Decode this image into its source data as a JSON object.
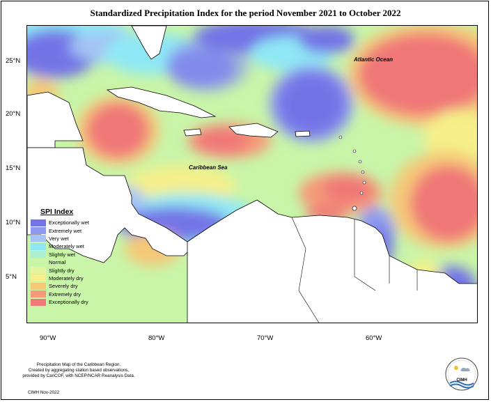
{
  "title": "Standardized Precipitation Index for the period November 2021 to October 2022",
  "latitude_labels": [
    "25°N",
    "20°N",
    "15°N",
    "10°N",
    "5°N"
  ],
  "longitude_labels": [
    "90°W",
    "80°W",
    "70°W",
    "60°W"
  ],
  "ocean_labels": {
    "atlantic": "Atlantic Ocean",
    "caribbean": "Caribbean Sea"
  },
  "legend": {
    "title": "SPI Index",
    "items": [
      {
        "label": "Exceptionally wet",
        "color": "#7373e6"
      },
      {
        "label": "Extremely wet",
        "color": "#8e9af0"
      },
      {
        "label": "Very wet",
        "color": "#a4c4f5"
      },
      {
        "label": "Moderately wet",
        "color": "#8fe8f5"
      },
      {
        "label": "Slightly wet",
        "color": "#b0f0d2"
      },
      {
        "label": "Normal",
        "color": "#c8f5a8"
      },
      {
        "label": "Slightly dry",
        "color": "#e4f5a0"
      },
      {
        "label": "Moderately dry",
        "color": "#f5f08a"
      },
      {
        "label": "Severely dry",
        "color": "#f5c878"
      },
      {
        "label": "Extremely dry",
        "color": "#f59a78"
      },
      {
        "label": "Exceptionally dry",
        "color": "#f07878"
      }
    ]
  },
  "footer": {
    "line1": "Precipitation Map of the Caribbean Region.",
    "line2": "Created by aggregating station based observations,",
    "line3": "provided by CariCOF, with NCEP/NCAR Reanalysis Data.",
    "credit": "CIMH Nov-2022"
  },
  "logo": {
    "text": "CIMH"
  }
}
